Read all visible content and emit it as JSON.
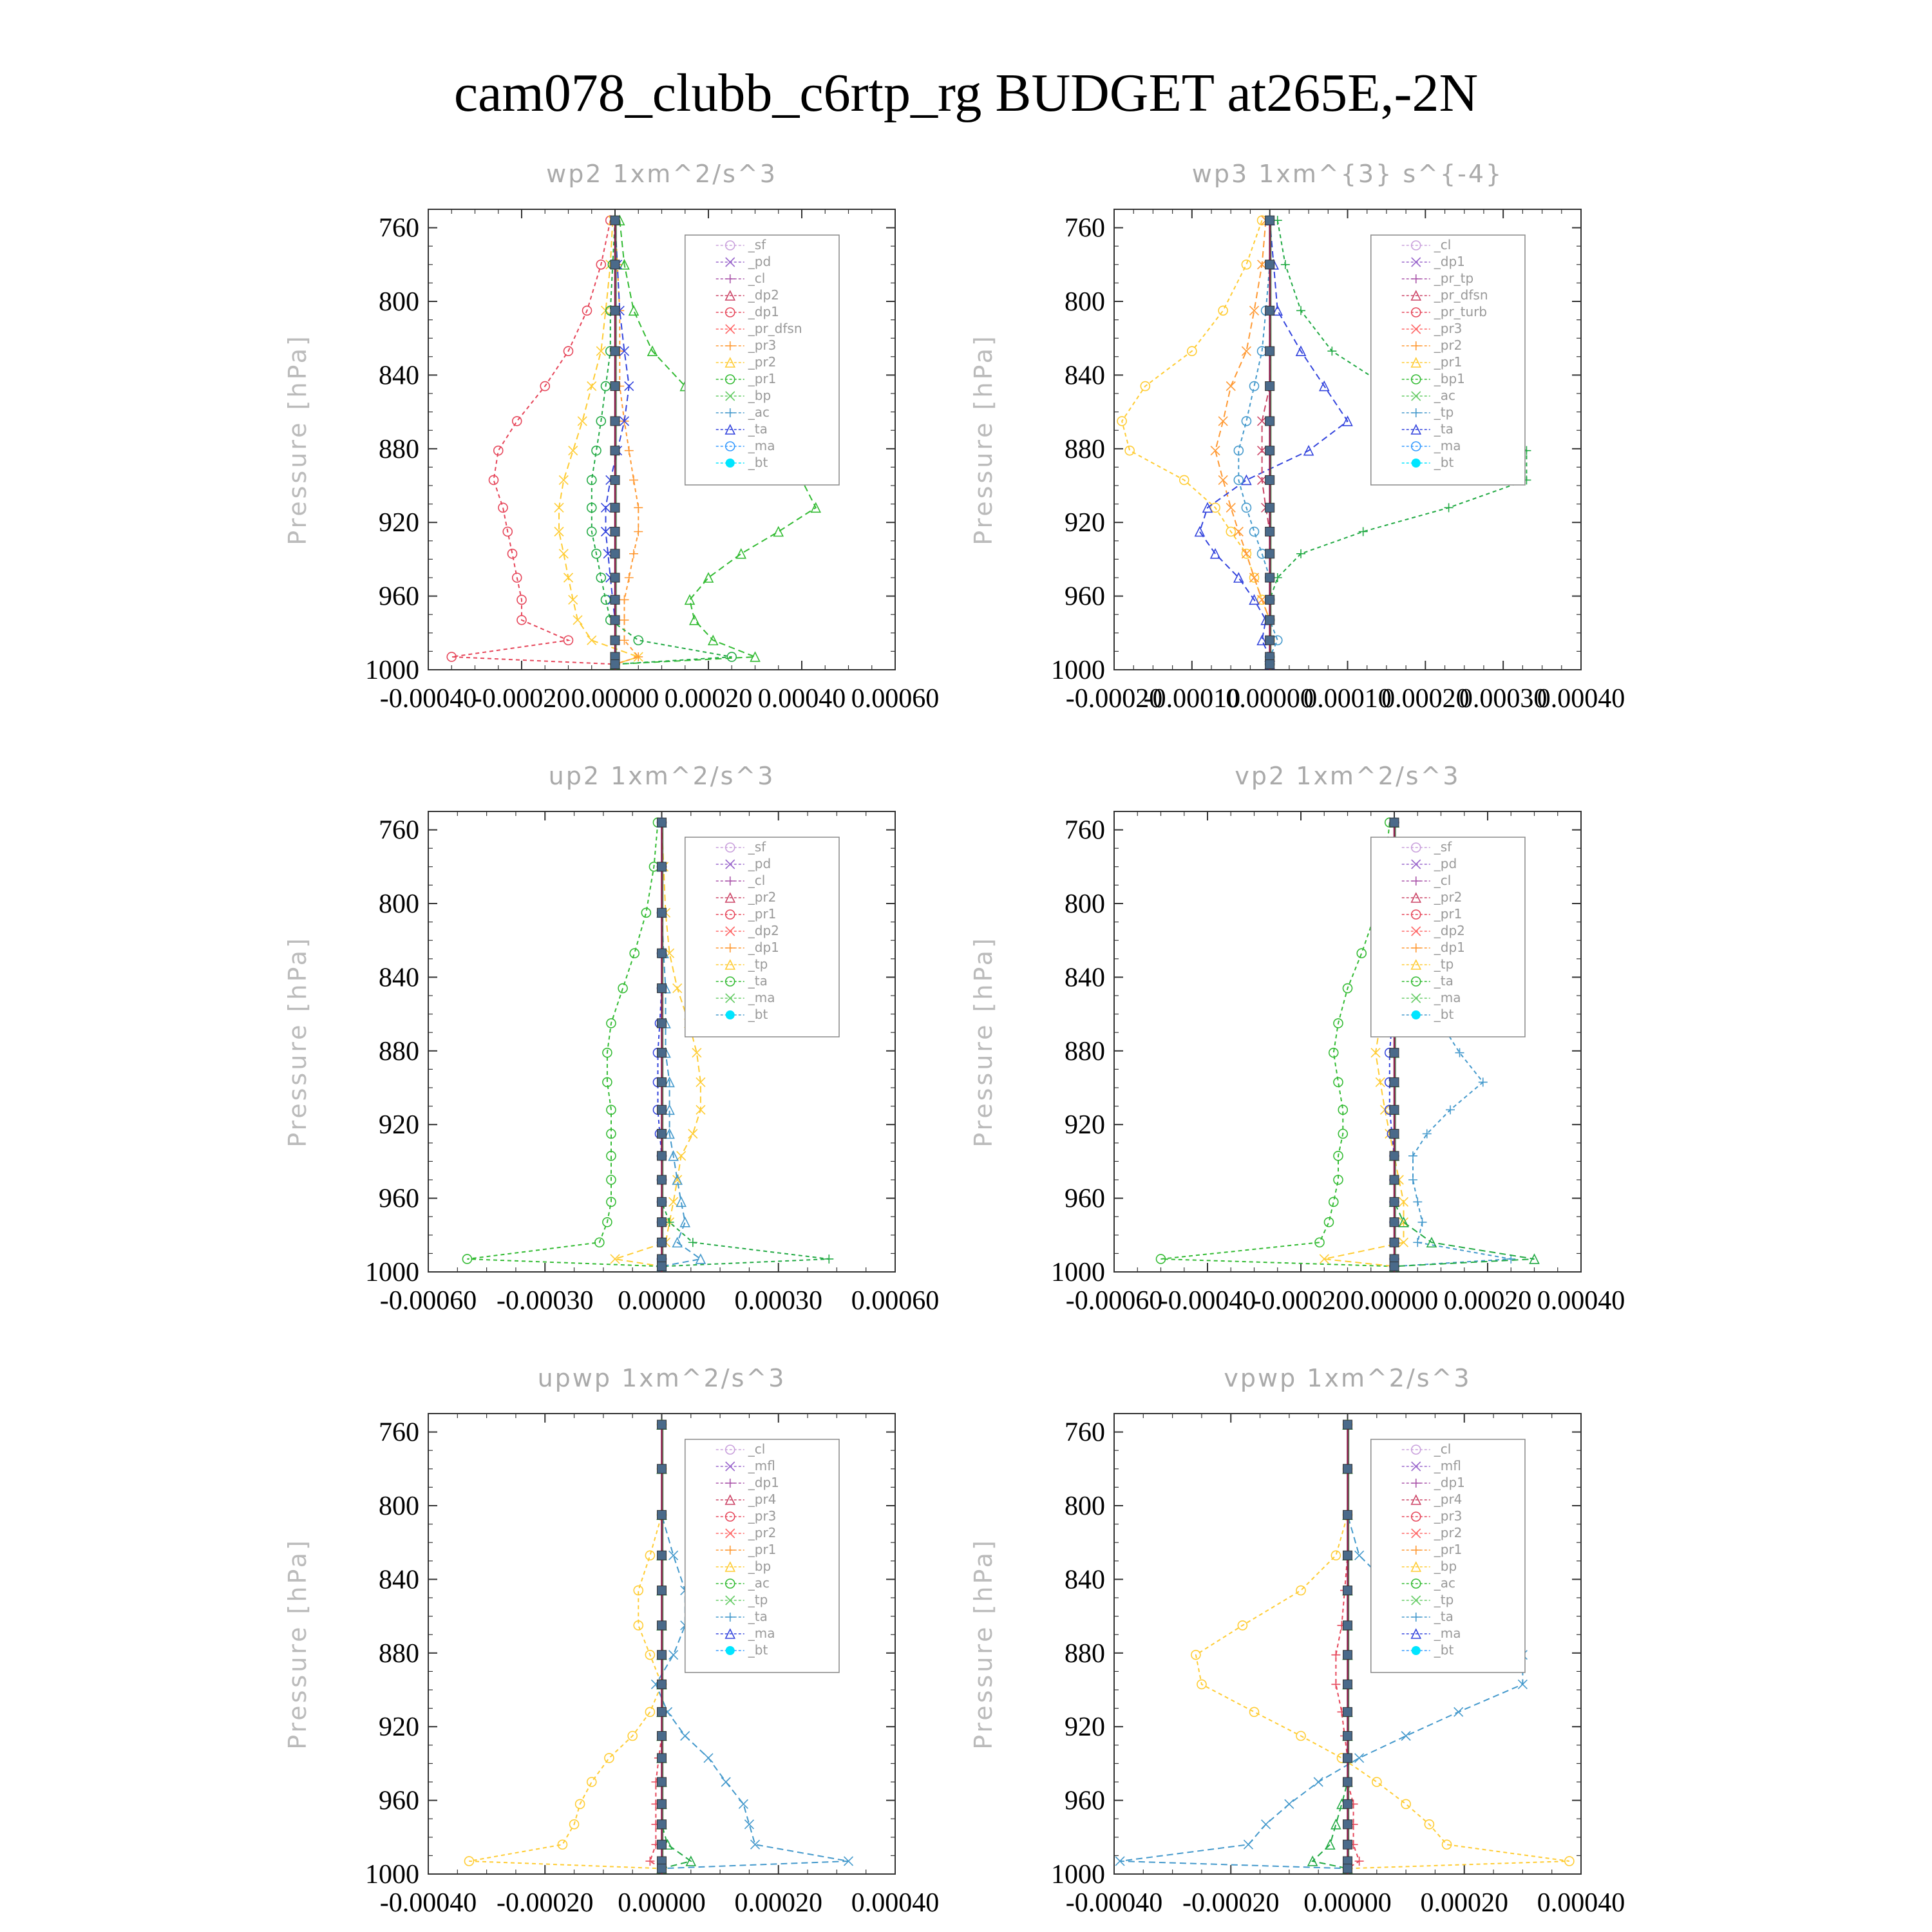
{
  "title": "cam078_clubb_c6rtp_rg  BUDGET at265E,-2N",
  "chart_data": [
    {
      "type": "line",
      "title": "wp2   1xm^2/s^3",
      "ylabel": "Pressure [hPa]",
      "yticks": [
        "760",
        "800",
        "840",
        "880",
        "920",
        "960",
        "1000"
      ],
      "xticks": [
        "-0.00040",
        "-0.00020",
        "0.00000",
        "0.00020",
        "0.00040",
        "0.00060"
      ],
      "xlim": [
        -0.0004,
        0.0006
      ],
      "ylim": [
        750,
        1000
      ],
      "legend": [
        "_sf",
        "_pd",
        "_cl",
        "_dp2",
        "_dp1",
        "_pr_dfsn",
        "_pr3",
        "_pr2",
        "_pr1",
        "_bp",
        "_ac",
        "_ta",
        "_ma",
        "_bt"
      ],
      "pressure": [
        756,
        780,
        805,
        827,
        846,
        865,
        881,
        897,
        912,
        925,
        937,
        950,
        962,
        973,
        984,
        993,
        997
      ],
      "series": [
        {
          "name": "_dp1",
          "color": "#e6465a",
          "values": [
            -1e-05,
            -3e-05,
            -6e-05,
            -0.0001,
            -0.00015,
            -0.00021,
            -0.00025,
            -0.00026,
            -0.00024,
            -0.00023,
            -0.00022,
            -0.00021,
            -0.0002,
            -0.0002,
            -0.0001,
            -0.00035,
            0
          ]
        },
        {
          "name": "_pr2",
          "color": "#ffcc33",
          "values": [
            -5e-06,
            -1e-05,
            -2e-05,
            -3e-05,
            -5e-05,
            -7e-05,
            -9e-05,
            -0.00011,
            -0.00012,
            -0.00012,
            -0.00011,
            -0.0001,
            -9e-05,
            -8e-05,
            -5e-05,
            5e-05,
            0
          ]
        },
        {
          "name": "_pr3",
          "color": "#ff9933",
          "values": [
            0,
            5e-06,
            1e-05,
            1e-05,
            1e-05,
            2e-05,
            3e-05,
            4e-05,
            5e-05,
            5e-05,
            4e-05,
            3e-05,
            2e-05,
            2e-05,
            2e-05,
            5e-05,
            0
          ]
        },
        {
          "name": "_bp",
          "color": "#33bb33",
          "values": [
            1e-05,
            2e-05,
            4e-05,
            8e-05,
            0.00015,
            0.00024,
            0.00033,
            0.0004,
            0.00043,
            0.00035,
            0.00027,
            0.0002,
            0.00016,
            0.00017,
            0.00021,
            0.0003,
            0
          ]
        },
        {
          "name": "_pr1",
          "color": "#22aa44",
          "values": [
            0,
            -5e-06,
            -1e-05,
            -1e-05,
            -2e-05,
            -3e-05,
            -4e-05,
            -5e-05,
            -5e-05,
            -5e-05,
            -4e-05,
            -3e-05,
            -2e-05,
            -1e-05,
            5e-05,
            0.00025,
            0
          ]
        },
        {
          "name": "_ta",
          "color": "#3344dd",
          "values": [
            0,
            5e-06,
            1e-05,
            2e-05,
            3e-05,
            2e-05,
            5e-06,
            -1e-05,
            -2e-05,
            -2e-05,
            -1.5e-05,
            -1e-05,
            -5e-06,
            0,
            0,
            0,
            0
          ]
        },
        {
          "name": "_ac",
          "color": "#4499cc",
          "values": [
            0,
            0,
            0,
            0,
            0,
            0,
            0,
            0,
            0,
            0,
            0,
            0,
            0,
            0,
            0,
            0,
            0
          ]
        }
      ]
    },
    {
      "type": "line",
      "title": "wp3   1xm^{3} s^{-4}",
      "ylabel": "Pressure [hPa]",
      "yticks": [
        "760",
        "800",
        "840",
        "880",
        "920",
        "960",
        "1000"
      ],
      "xticks": [
        "-0.00020",
        "-0.00010",
        "0.00000",
        "0.00010",
        "0.00020",
        "0.00030",
        "0.00040"
      ],
      "xlim": [
        -0.0002,
        0.0004
      ],
      "ylim": [
        750,
        1000
      ],
      "legend": [
        "_cl",
        "_dp1",
        "_pr_tp",
        "_pr_dfsn",
        "_pr_turb",
        "_pr3",
        "_pr2",
        "_pr1",
        "_bp1",
        "_ac",
        "_tp",
        "_ta",
        "_ma",
        "_bt"
      ],
      "pressure": [
        756,
        780,
        805,
        827,
        846,
        865,
        881,
        897,
        912,
        925,
        937,
        950,
        962,
        973,
        984,
        993,
        997
      ],
      "series": [
        {
          "name": "_pr1",
          "color": "#ffcc33",
          "values": [
            -1e-05,
            -3e-05,
            -6e-05,
            -0.0001,
            -0.00016,
            -0.00019,
            -0.00018,
            -0.00011,
            -7e-05,
            -5e-05,
            -3e-05,
            -2e-05,
            -1e-05,
            0,
            0,
            0,
            0
          ]
        },
        {
          "name": "_pr2",
          "color": "#ff9933",
          "values": [
            -5e-06,
            -1e-05,
            -2e-05,
            -3e-05,
            -5e-05,
            -6e-05,
            -7e-05,
            -6e-05,
            -5e-05,
            -4e-05,
            -3e-05,
            -2e-05,
            -1e-05,
            0,
            0,
            0,
            0
          ]
        },
        {
          "name": "_bp1",
          "color": "#22aa44",
          "values": [
            1e-05,
            2e-05,
            4e-05,
            8e-05,
            0.00015,
            0.00025,
            0.00033,
            0.00033,
            0.00023,
            0.00012,
            4e-05,
            1e-05,
            0,
            0,
            0,
            0,
            0
          ]
        },
        {
          "name": "_ta",
          "color": "#3344dd",
          "values": [
            0,
            5e-06,
            1e-05,
            4e-05,
            7e-05,
            0.0001,
            5e-05,
            -3e-05,
            -8e-05,
            -9e-05,
            -7e-05,
            -4e-05,
            -2e-05,
            -5e-06,
            -1e-05,
            0,
            0
          ]
        },
        {
          "name": "_tp",
          "color": "#4499cc",
          "values": [
            0,
            0,
            -5e-06,
            -1e-05,
            -2e-05,
            -3e-05,
            -4e-05,
            -4e-05,
            -3e-05,
            -2e-05,
            -1e-05,
            0,
            0,
            0,
            1e-05,
            0,
            0
          ]
        },
        {
          "name": "_pr_turb",
          "color": "#cc4466",
          "values": [
            0,
            0,
            0,
            0,
            0,
            -1e-05,
            -1e-05,
            -1e-05,
            -5e-06,
            0,
            0,
            0,
            0,
            0,
            0,
            0,
            0
          ]
        }
      ]
    },
    {
      "type": "line",
      "title": "up2   1xm^2/s^3",
      "ylabel": "Pressure [hPa]",
      "yticks": [
        "760",
        "800",
        "840",
        "880",
        "920",
        "960",
        "1000"
      ],
      "xticks": [
        "-0.00060",
        "-0.00030",
        "0.00000",
        "0.00030",
        "0.00060"
      ],
      "xlim": [
        -0.0006,
        0.0006
      ],
      "ylim": [
        750,
        1000
      ],
      "legend": [
        "_sf",
        "_pd",
        "_cl",
        "_pr2",
        "_pr1",
        "_dp2",
        "_dp1",
        "_tp",
        "_ta",
        "_ma",
        "_bt"
      ],
      "pressure": [
        756,
        780,
        805,
        827,
        846,
        865,
        881,
        897,
        912,
        925,
        937,
        950,
        962,
        973,
        984,
        993,
        997
      ],
      "series": [
        {
          "name": "_dp1",
          "color": "#33bb33",
          "values": [
            -1e-05,
            -2e-05,
            -4e-05,
            -7e-05,
            -0.0001,
            -0.00013,
            -0.00014,
            -0.00014,
            -0.00013,
            -0.00013,
            -0.00013,
            -0.00013,
            -0.00013,
            -0.00014,
            -0.00016,
            -0.0005,
            0
          ]
        },
        {
          "name": "_pr1",
          "color": "#ffcc33",
          "values": [
            0,
            5e-06,
            1e-05,
            2e-05,
            4e-05,
            7e-05,
            9e-05,
            0.0001,
            0.0001,
            8e-05,
            5e-05,
            4e-05,
            3e-05,
            2e-05,
            1e-05,
            -0.00012,
            0
          ]
        },
        {
          "name": "_dp2",
          "color": "#22aa44",
          "values": [
            0,
            0,
            0,
            0,
            0,
            0,
            0,
            0,
            0,
            0,
            0,
            0,
            0,
            2e-05,
            8e-05,
            0.00043,
            0
          ]
        },
        {
          "name": "_tp",
          "color": "#4499cc",
          "values": [
            0,
            0,
            0,
            5e-06,
            1e-05,
            1e-05,
            1e-05,
            2e-05,
            2e-05,
            2e-05,
            3e-05,
            4e-05,
            5e-05,
            6e-05,
            4e-05,
            0.0001,
            0
          ]
        },
        {
          "name": "_ta",
          "color": "#3344dd",
          "values": [
            0,
            0,
            0,
            0,
            0,
            -5e-06,
            -1e-05,
            -1e-05,
            -1e-05,
            -5e-06,
            0,
            0,
            0,
            0,
            0,
            0,
            0
          ]
        }
      ]
    },
    {
      "type": "line",
      "title": "vp2   1xm^2/s^3",
      "ylabel": "Pressure [hPa]",
      "yticks": [
        "760",
        "800",
        "840",
        "880",
        "920",
        "960",
        "1000"
      ],
      "xticks": [
        "-0.00060",
        "-0.00040",
        "-0.00020",
        "0.00000",
        "0.00020",
        "0.00040"
      ],
      "xlim": [
        -0.0006,
        0.0004
      ],
      "ylim": [
        750,
        1000
      ],
      "legend": [
        "_sf",
        "_pd",
        "_cl",
        "_pr2",
        "_pr1",
        "_dp2",
        "_dp1",
        "_tp",
        "_ta",
        "_ma",
        "_bt"
      ],
      "pressure": [
        756,
        780,
        805,
        827,
        846,
        865,
        881,
        897,
        912,
        925,
        937,
        950,
        962,
        973,
        984,
        993,
        997
      ],
      "series": [
        {
          "name": "_dp1",
          "color": "#33bb33",
          "values": [
            -1e-05,
            -2e-05,
            -4e-05,
            -7e-05,
            -0.0001,
            -0.00012,
            -0.00013,
            -0.00012,
            -0.00011,
            -0.00011,
            -0.00012,
            -0.00012,
            -0.00013,
            -0.00014,
            -0.00016,
            -0.0005,
            0
          ]
        },
        {
          "name": "_pr1",
          "color": "#ffcc33",
          "values": [
            0,
            0,
            -5e-06,
            -1e-05,
            -2e-05,
            -3e-05,
            -4e-05,
            -3e-05,
            -2e-05,
            -1e-05,
            0,
            1e-05,
            2e-05,
            2e-05,
            2e-05,
            -0.00015,
            0
          ]
        },
        {
          "name": "_tp",
          "color": "#4499cc",
          "values": [
            0,
            0,
            5e-06,
            2e-05,
            5e-05,
            0.0001,
            0.00014,
            0.00019,
            0.00012,
            7e-05,
            4e-05,
            4e-05,
            5e-05,
            6e-05,
            5e-05,
            0.00025,
            0
          ]
        },
        {
          "name": "_dp2",
          "color": "#22aa44",
          "values": [
            0,
            0,
            0,
            0,
            0,
            0,
            0,
            0,
            0,
            0,
            0,
            0,
            0,
            2e-05,
            8e-05,
            0.0003,
            0
          ]
        },
        {
          "name": "_ta",
          "color": "#3344dd",
          "values": [
            0,
            0,
            0,
            0,
            0,
            -5e-06,
            -1e-05,
            -1e-05,
            -1e-05,
            -5e-06,
            0,
            0,
            0,
            0,
            0,
            0,
            0
          ]
        }
      ]
    },
    {
      "type": "line",
      "title": "upwp   1xm^2/s^3",
      "ylabel": "Pressure [hPa]",
      "yticks": [
        "760",
        "800",
        "840",
        "880",
        "920",
        "960",
        "1000"
      ],
      "xticks": [
        "-0.00040",
        "-0.00020",
        "0.00000",
        "0.00020",
        "0.00040"
      ],
      "xlim": [
        -0.0004,
        0.0004
      ],
      "ylim": [
        750,
        1000
      ],
      "legend": [
        "_cl",
        "_mfl",
        "_dp1",
        "_pr4",
        "_pr3",
        "_pr2",
        "_pr1",
        "_bp",
        "_ac",
        "_tp",
        "_ta",
        "_ma",
        "_bt"
      ],
      "pressure": [
        756,
        780,
        805,
        827,
        846,
        865,
        881,
        897,
        912,
        925,
        937,
        950,
        962,
        973,
        984,
        993,
        997
      ],
      "series": [
        {
          "name": "_pr1",
          "color": "#ffcc33",
          "values": [
            0,
            0,
            0,
            -2e-05,
            -4e-05,
            -4e-05,
            -2e-05,
            0,
            -2e-05,
            -5e-05,
            -9e-05,
            -0.00012,
            -0.00014,
            -0.00015,
            -0.00017,
            -0.00033,
            0
          ]
        },
        {
          "name": "_tp",
          "color": "#4499cc",
          "values": [
            0,
            0,
            0,
            2e-05,
            4e-05,
            4e-05,
            2e-05,
            -1e-05,
            1e-05,
            4e-05,
            8e-05,
            0.00011,
            0.00014,
            0.00015,
            0.00016,
            0.00032,
            0
          ]
        },
        {
          "name": "_pr4",
          "color": "#e6465a",
          "values": [
            0,
            0,
            0,
            0,
            0,
            0,
            0,
            0,
            0,
            0,
            -5e-06,
            -1e-05,
            -1e-05,
            -1e-05,
            -1e-05,
            -2e-05,
            0
          ]
        },
        {
          "name": "_bp",
          "color": "#22aa44",
          "values": [
            0,
            0,
            0,
            0,
            0,
            0,
            0,
            0,
            0,
            0,
            0,
            0,
            0,
            0,
            1e-05,
            5e-05,
            0
          ]
        }
      ]
    },
    {
      "type": "line",
      "title": "vpwp   1xm^2/s^3",
      "ylabel": "Pressure [hPa]",
      "yticks": [
        "760",
        "800",
        "840",
        "880",
        "920",
        "960",
        "1000"
      ],
      "xticks": [
        "-0.00040",
        "-0.00020",
        "0.00000",
        "0.00020",
        "0.00040"
      ],
      "xlim": [
        -0.0004,
        0.0004
      ],
      "ylim": [
        750,
        1000
      ],
      "legend": [
        "_cl",
        "_mfl",
        "_dp1",
        "_pr4",
        "_pr3",
        "_pr2",
        "_pr1",
        "_bp",
        "_ac",
        "_tp",
        "_ta",
        "_ma",
        "_bt"
      ],
      "pressure": [
        756,
        780,
        805,
        827,
        846,
        865,
        881,
        897,
        912,
        925,
        937,
        950,
        962,
        973,
        984,
        993,
        997
      ],
      "series": [
        {
          "name": "_pr1",
          "color": "#ffcc33",
          "values": [
            0,
            0,
            0,
            -2e-05,
            -8e-05,
            -0.00018,
            -0.00026,
            -0.00025,
            -0.00016,
            -8e-05,
            -1e-05,
            5e-05,
            0.0001,
            0.00014,
            0.00017,
            0.00038,
            0
          ]
        },
        {
          "name": "_tp",
          "color": "#4499cc",
          "values": [
            0,
            0,
            0,
            2e-05,
            8e-05,
            0.00018,
            0.0003,
            0.0003,
            0.00019,
            0.0001,
            2e-05,
            -5e-05,
            -0.0001,
            -0.00014,
            -0.00017,
            -0.00039,
            0
          ]
        },
        {
          "name": "_pr4",
          "color": "#e6465a",
          "values": [
            0,
            0,
            0,
            0,
            -5e-06,
            -1e-05,
            -2e-05,
            -2e-05,
            -1e-05,
            -5e-06,
            0,
            0,
            1e-05,
            1e-05,
            1e-05,
            2e-05,
            0
          ]
        },
        {
          "name": "_bp",
          "color": "#22aa44",
          "values": [
            0,
            0,
            0,
            0,
            0,
            0,
            0,
            0,
            0,
            0,
            0,
            0,
            -1e-05,
            -2e-05,
            -3e-05,
            -6e-05,
            0
          ]
        }
      ]
    }
  ]
}
